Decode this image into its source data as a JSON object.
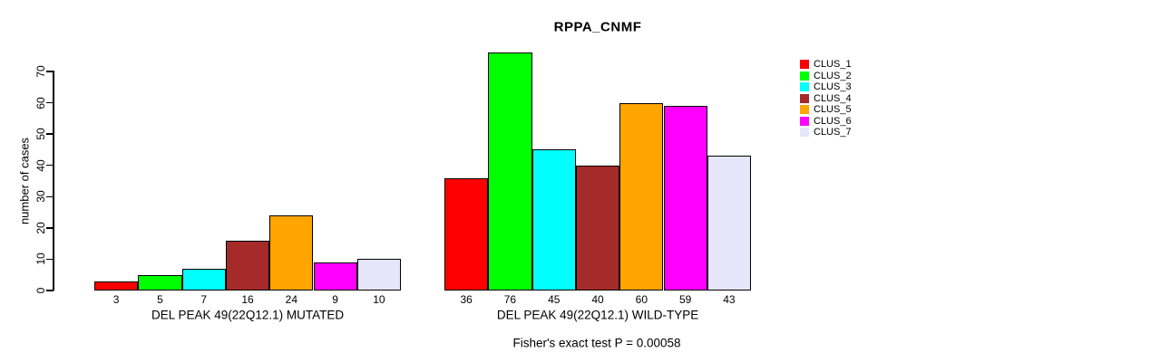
{
  "chart_data": {
    "type": "bar",
    "title": "RPPA_CNMF",
    "ylabel": "number of cases",
    "xlabel": "",
    "ylim": [
      0,
      70
    ],
    "yticks": [
      0,
      10,
      20,
      30,
      40,
      50,
      60,
      70
    ],
    "grid": false,
    "legend_position": "right",
    "legend": [
      {
        "label": "CLUS_1",
        "color": "#FF0000"
      },
      {
        "label": "CLUS_2",
        "color": "#00FF00"
      },
      {
        "label": "CLUS_3",
        "color": "#00FFFF"
      },
      {
        "label": "CLUS_4",
        "color": "#A52A2A"
      },
      {
        "label": "CLUS_5",
        "color": "#FFA500"
      },
      {
        "label": "CLUS_6",
        "color": "#FF00FF"
      },
      {
        "label": "CLUS_7",
        "color": "#E6E6FA"
      }
    ],
    "groups": [
      {
        "label": "DEL PEAK 49(22Q12.1) MUTATED",
        "bar_labels": [
          "3",
          "5",
          "7",
          "16",
          "24",
          "9",
          "10"
        ],
        "values": [
          3,
          5,
          7,
          16,
          24,
          9,
          10
        ]
      },
      {
        "label": "DEL PEAK 49(22Q12.1) WILD-TYPE",
        "bar_labels": [
          "36",
          "76",
          "45",
          "40",
          "60",
          "59",
          "43"
        ],
        "values": [
          36,
          76,
          45,
          40,
          60,
          59,
          43
        ]
      }
    ],
    "annotation": "Fisher's exact test P = 0.00058"
  }
}
